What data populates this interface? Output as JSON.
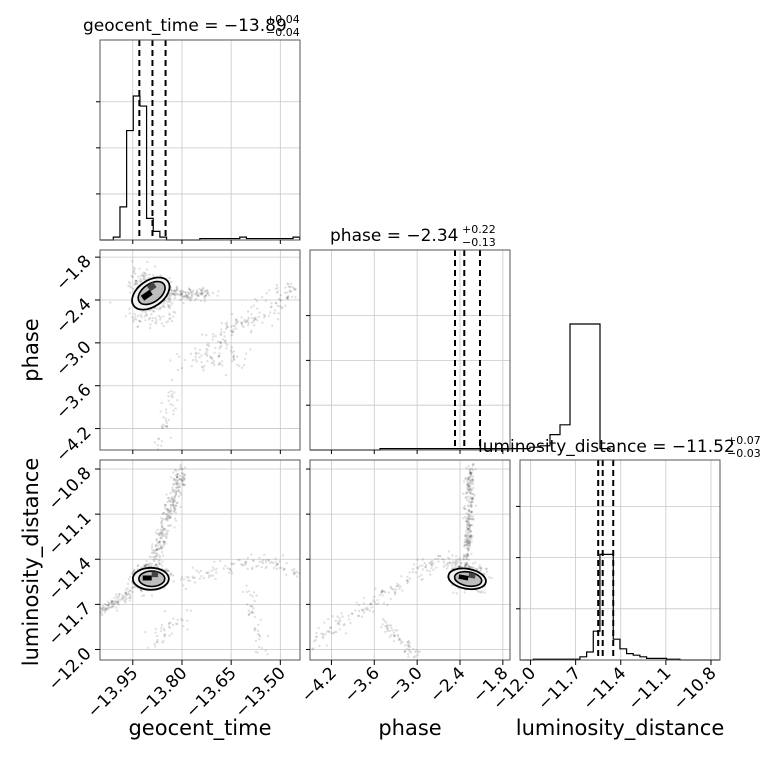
{
  "chart_data": {
    "type": "corner",
    "parameters": [
      "geocent_time",
      "phase",
      "luminosity_distance"
    ],
    "ranges": {
      "geocent_time": [
        -14.05,
        -13.44
      ],
      "phase": [
        -4.5,
        -1.7
      ],
      "luminosity_distance": [
        -12.07,
        -10.74
      ]
    },
    "ticks": {
      "geocent_time": [
        "−13.95",
        "−13.80",
        "−13.65",
        "−13.50"
      ],
      "phase": [
        "−4.2",
        "−3.6",
        "−3.0",
        "−2.4",
        "−1.8"
      ],
      "luminosity_distance": [
        "−12.0",
        "−11.7",
        "−11.4",
        "−11.1",
        "−10.8"
      ]
    },
    "tick_values": {
      "geocent_time": [
        -13.95,
        -13.8,
        -13.65,
        -13.5
      ],
      "phase": [
        -4.2,
        -3.6,
        -3.0,
        -2.4,
        -1.8
      ],
      "luminosity_distance": [
        -12.0,
        -11.7,
        -11.4,
        -11.1,
        -10.8
      ]
    },
    "titles": [
      {
        "name": "geocent_time",
        "median": "−13.89",
        "plus": "+0.04",
        "minus": "−0.04"
      },
      {
        "name": "phase",
        "median": "−2.34",
        "plus": "+0.22",
        "minus": "−0.13"
      },
      {
        "name": "luminosity_distance",
        "median": "−11.52",
        "plus": "+0.07",
        "minus": "−0.03"
      }
    ],
    "quantiles": {
      "geocent_time": [
        -13.93,
        -13.89,
        -13.85
      ],
      "phase": [
        -2.47,
        -2.34,
        -2.12
      ],
      "luminosity_distance": [
        -11.55,
        -11.52,
        -11.45
      ]
    },
    "histograms": {
      "geocent_time": {
        "edges_start": -14.05,
        "bin_width": 0.0203,
        "counts": [
          0,
          0,
          0.02,
          0.23,
          0.76,
          1.0,
          0.93,
          0.15,
          0.06,
          0.02,
          0,
          0,
          0,
          0,
          0,
          0.01,
          0.01,
          0.01,
          0.01,
          0.01,
          0.01,
          0.02,
          0.01,
          0.01,
          0.01,
          0.01,
          0.01,
          0.01,
          0.01,
          0.02
        ]
      },
      "phase": {
        "edges_start": -4.5,
        "bin_width": 0.14,
        "counts": [
          0,
          0,
          0,
          0,
          0,
          0,
          0,
          0.01,
          0.01,
          0.01,
          0.01,
          0.01,
          0.01,
          0.01,
          0.01,
          0.01,
          0.01,
          0.01,
          0.01,
          0.01,
          0.01,
          0.01,
          0.02,
          0.03,
          0.11,
          0.18,
          0.9,
          0.9,
          0.9,
          0.01
        ]
      },
      "luminosity_distance": {
        "edges_start": -12.07,
        "bin_width": 0.0443,
        "counts": [
          0,
          0,
          0.005,
          0.005,
          0.005,
          0.005,
          0.005,
          0.005,
          0.005,
          0.02,
          0.05,
          0.18,
          0.66,
          0.66,
          0.13,
          0.07,
          0.04,
          0.03,
          0.02,
          0.01,
          0.01,
          0.01,
          0.005,
          0.005,
          0,
          0,
          0,
          0,
          0,
          0
        ]
      }
    },
    "hist_scale": {
      "geocent_time": 0.72,
      "phase": 0.7,
      "luminosity_distance": 0.8
    },
    "grid": true,
    "labels": {
      "x": [
        "geocent_time",
        "phase",
        "luminosity_distance"
      ],
      "y": [
        "phase",
        "luminosity_distance"
      ]
    }
  }
}
